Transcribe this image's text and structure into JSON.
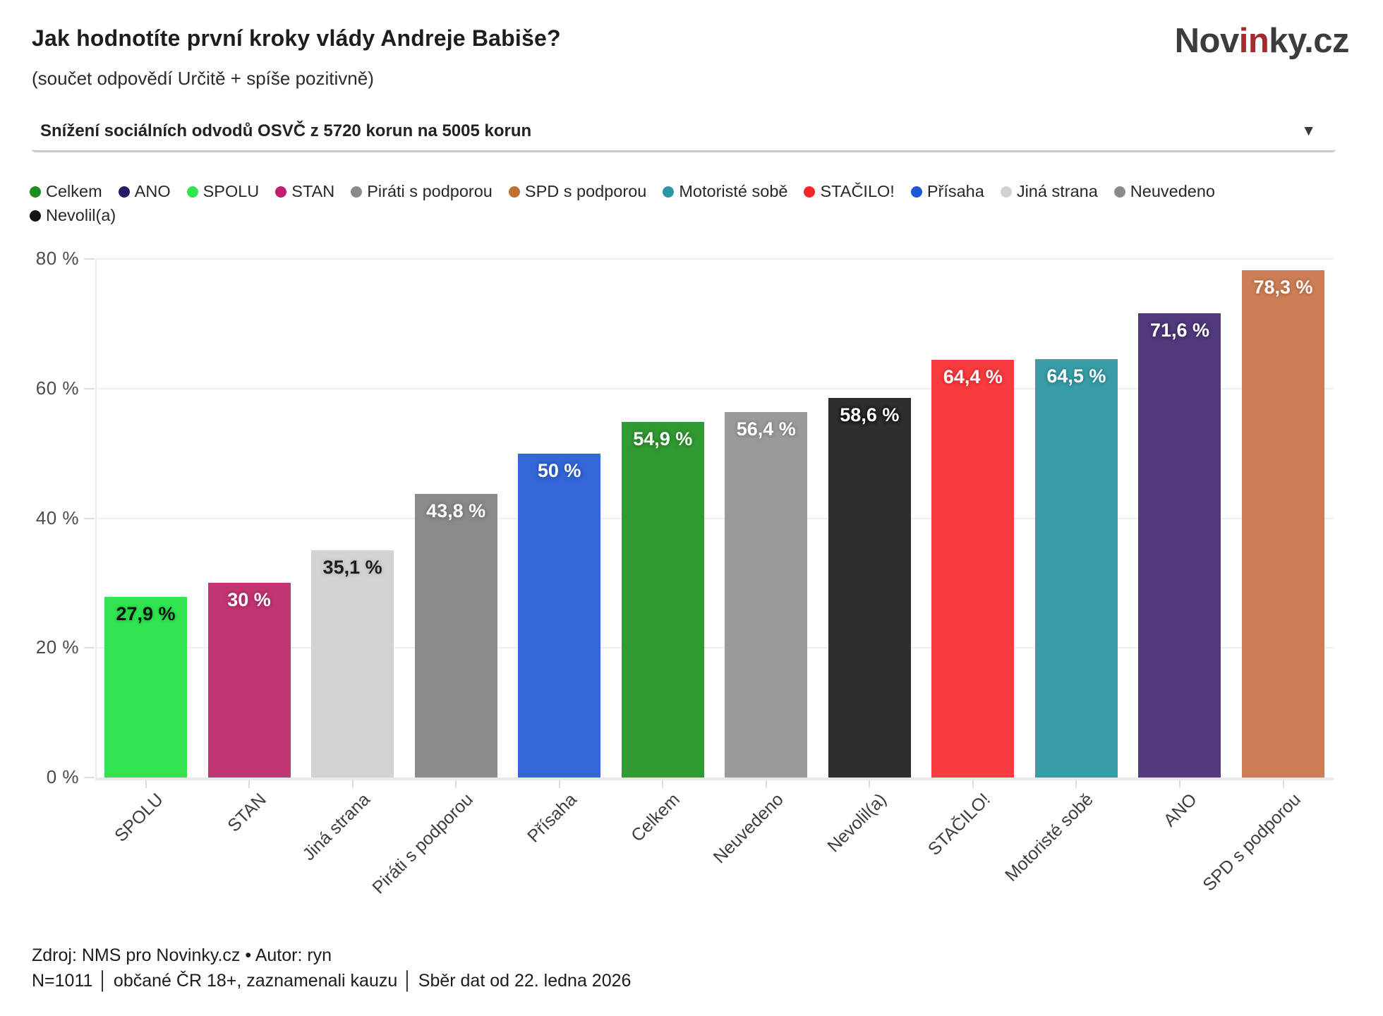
{
  "header": {
    "title": "Jak hodnotíte první kroky vlády Andreje Babiše?",
    "subtitle": "(součet odpovědí Určitě + spíše pozitivně)",
    "logo": {
      "part1": "Nov",
      "part2": "in",
      "part3": "ky.cz",
      "accent_color": "#a32a2d"
    }
  },
  "dropdown": {
    "value": "Snížení sociálních odvodů OSVČ z 5720 korun na 5005 korun",
    "arrow_icon": "▼"
  },
  "legend": {
    "rows": [
      [
        {
          "label": "Celkem",
          "color": "#1f8c24"
        },
        {
          "label": "ANO",
          "color": "#2b1b67"
        },
        {
          "label": "SPOLU",
          "color": "#2ee64d"
        },
        {
          "label": "STAN",
          "color": "#c0206c"
        },
        {
          "label": "Piráti s podporou",
          "color": "#8a8a8a"
        },
        {
          "label": "SPD s podporou",
          "color": "#c2702f"
        },
        {
          "label": "Motoristé sobě",
          "color": "#2a98a2"
        },
        {
          "label": "STAČILO!",
          "color": "#f2262b"
        },
        {
          "label": "Přísaha",
          "color": "#1e56d6"
        },
        {
          "label": "Jiná strana",
          "color": "#d2d2d2"
        },
        {
          "label": "Neuvedeno",
          "color": "#8c8c8c"
        }
      ],
      [
        {
          "label": "Nevolil(a)",
          "color": "#141414"
        }
      ]
    ]
  },
  "chart_data": {
    "type": "bar",
    "title": "Jak hodnotíte první kroky vlády Andreje Babiše?",
    "subtitle": "(součet odpovědí Určitě + spíše pozitivně)",
    "categories": [
      "SPOLU",
      "STAN",
      "Jiná strana",
      "Piráti s podporou",
      "Přísaha",
      "Celkem",
      "Neuvedeno",
      "Nevolil(a)",
      "STAČILO!",
      "Motoristé sobě",
      "ANO",
      "SPD s podporou"
    ],
    "values": [
      27.9,
      30,
      35.1,
      43.8,
      50,
      54.9,
      56.4,
      58.6,
      64.4,
      64.5,
      71.6,
      78.3
    ],
    "value_labels": [
      "27,9 %",
      "30 %",
      "35,1 %",
      "43,8 %",
      "50 %",
      "54,9 %",
      "56,4 %",
      "58,6 %",
      "64,4 %",
      "64,5 %",
      "71,6 %",
      "78,3 %"
    ],
    "colors": [
      "#33e452",
      "#c23573",
      "#d3d3d3",
      "#8b8b8b",
      "#3366d6",
      "#319a31",
      "#9a9a9a",
      "#2e2e2e",
      "#f73b3e",
      "#389da6",
      "#523a7d",
      "#cc7f56"
    ],
    "label_colors": [
      "#111111",
      "#ffffff",
      "#1c1c1c",
      "#ffffff",
      "#ffffff",
      "#ffffff",
      "#ffffff",
      "#ffffff",
      "#ffffff",
      "#ffffff",
      "#ffffff",
      "#ffffff"
    ],
    "label_halos": [
      "#1fcf40",
      "#a62a61",
      "#bfbfbf",
      "#757575",
      "#2a55b8",
      "#287f29",
      "#828282",
      "#101010",
      "#d92d31",
      "#2c858d",
      "#3f2c63",
      "#b36a43"
    ],
    "xlabel": "",
    "ylabel": "",
    "ylim": [
      0,
      80
    ],
    "y_ticks": [
      0,
      20,
      40,
      60,
      80
    ],
    "y_tick_labels": [
      "0 %",
      "20 %",
      "40 %",
      "60 %",
      "80 %"
    ],
    "grid": true,
    "legend_position": "top"
  },
  "footer": {
    "source_line": "Zdroj: NMS pro Novinky.cz • Autor: ryn",
    "note_line": "N=1011 │ občané ČR 18+, zaznamenali kauzu │ Sběr dat od 22. ledna 2026"
  }
}
